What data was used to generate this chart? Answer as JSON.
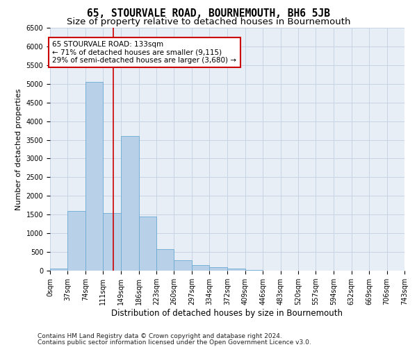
{
  "title": "65, STOURVALE ROAD, BOURNEMOUTH, BH6 5JB",
  "subtitle": "Size of property relative to detached houses in Bournemouth",
  "xlabel": "Distribution of detached houses by size in Bournemouth",
  "ylabel": "Number of detached properties",
  "footnote1": "Contains HM Land Registry data © Crown copyright and database right 2024.",
  "footnote2": "Contains public sector information licensed under the Open Government Licence v3.0.",
  "bins": [
    0,
    37,
    74,
    111,
    149,
    186,
    223,
    260,
    297,
    334,
    372,
    409,
    446,
    483,
    520,
    557,
    594,
    632,
    669,
    706,
    743
  ],
  "values": [
    50,
    1600,
    5050,
    1550,
    3600,
    1450,
    570,
    270,
    150,
    95,
    60,
    10,
    0,
    0,
    0,
    0,
    0,
    0,
    0,
    0
  ],
  "bar_color": "#b8d0e8",
  "bar_edge_color": "#6aaad4",
  "grid_color": "#c8d4e4",
  "annotation_text": "65 STOURVALE ROAD: 133sqm\n← 71% of detached houses are smaller (9,115)\n29% of semi-detached houses are larger (3,680) →",
  "annotation_box_color": "#ffffff",
  "annotation_box_edge": "#cc0000",
  "vline_x": 133,
  "vline_color": "#cc0000",
  "ylim": [
    0,
    6500
  ],
  "yticks": [
    0,
    500,
    1000,
    1500,
    2000,
    2500,
    3000,
    3500,
    4000,
    4500,
    5000,
    5500,
    6000,
    6500
  ],
  "bg_color": "#e8eef6",
  "fig_bg_color": "#ffffff",
  "title_fontsize": 10.5,
  "subtitle_fontsize": 9.5,
  "xlabel_fontsize": 8.5,
  "ylabel_fontsize": 8,
  "tick_fontsize": 7,
  "annotation_fontsize": 7.5,
  "footnote_fontsize": 6.5
}
